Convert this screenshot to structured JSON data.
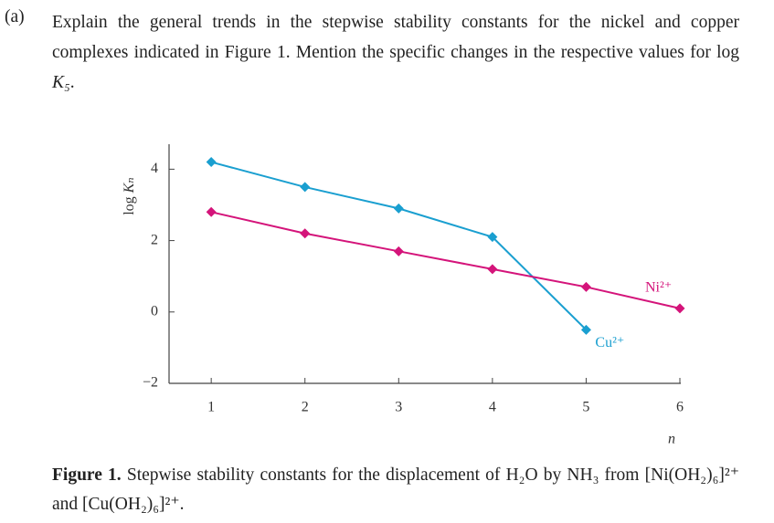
{
  "question": {
    "label": "(a)",
    "text": "Explain the general trends in the stepwise stability constants for the nickel and copper complexes indicated in Figure 1. Mention the specific changes in the respective values for log ",
    "symbol": "K₅",
    "end": "."
  },
  "chart_data": {
    "type": "line",
    "y_label": {
      "prefix": "log",
      "symbol": "Kₙ"
    },
    "x_label": "n",
    "xlim": [
      0.55,
      6
    ],
    "xticks": [
      1,
      2,
      3,
      4,
      5,
      6
    ],
    "ylim": [
      -2,
      4.7
    ],
    "yticks": [
      {
        "value": -2,
        "label": "−2"
      },
      0,
      2,
      4
    ],
    "series": [
      {
        "name": "Cu²⁺",
        "color": "#1a9fd0",
        "x": [
          1,
          2,
          3,
          4,
          5
        ],
        "values": [
          4.2,
          3.5,
          2.9,
          2.1,
          -0.5
        ]
      },
      {
        "name": "Ni²⁺",
        "color": "#d4147a",
        "x": [
          1,
          2,
          3,
          4,
          5,
          6
        ],
        "values": [
          2.8,
          2.2,
          1.7,
          1.2,
          0.7,
          0.1
        ]
      }
    ]
  },
  "caption": {
    "label": "Figure 1.",
    "text": "Stepwise stability constants for the displacement of H₂O by NH₃ from [Ni(OH₂)₆]²⁺ and [Cu(OH₂)₆]²⁺."
  }
}
